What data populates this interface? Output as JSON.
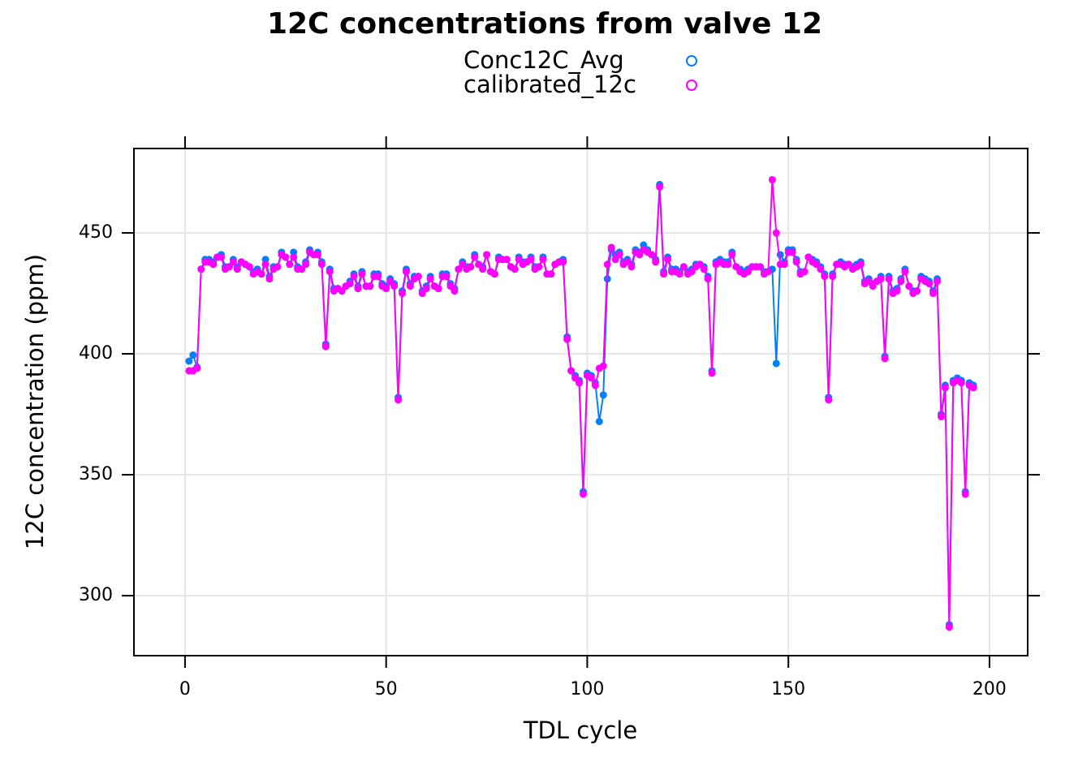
{
  "chart_data": {
    "type": "line",
    "title": "12C concentrations from valve 12",
    "x_label": "TDL cycle",
    "y_label": "12C concentration (ppm)",
    "xlim": [
      -12.7,
      209.5
    ],
    "xticks": [
      0,
      50,
      100,
      150,
      200
    ],
    "ylim": [
      275.2,
      484.9
    ],
    "yticks": [
      300,
      350,
      400,
      450
    ],
    "grid": true,
    "legend": "top",
    "x": [
      1,
      2,
      3,
      4,
      5,
      6,
      7,
      8,
      9,
      10,
      11,
      12,
      13,
      14,
      15,
      16,
      17,
      18,
      19,
      20,
      21,
      22,
      23,
      24,
      25,
      26,
      27,
      28,
      29,
      30,
      31,
      32,
      33,
      34,
      35,
      36,
      37,
      38,
      39,
      40,
      41,
      42,
      43,
      44,
      45,
      46,
      47,
      48,
      49,
      50,
      51,
      52,
      53,
      54,
      55,
      56,
      57,
      58,
      59,
      60,
      61,
      62,
      63,
      64,
      65,
      66,
      67,
      68,
      69,
      70,
      71,
      72,
      73,
      74,
      75,
      76,
      77,
      78,
      79,
      80,
      81,
      82,
      83,
      84,
      85,
      86,
      87,
      88,
      89,
      90,
      91,
      92,
      93,
      94,
      95,
      96,
      97,
      98,
      99,
      100,
      101,
      102,
      103,
      104,
      105,
      106,
      107,
      108,
      109,
      110,
      111,
      112,
      113,
      114,
      115,
      116,
      117,
      118,
      119,
      120,
      121,
      122,
      123,
      124,
      125,
      126,
      127,
      128,
      129,
      130,
      131,
      132,
      133,
      134,
      135,
      136,
      137,
      138,
      139,
      140,
      141,
      142,
      143,
      144,
      145,
      146,
      147,
      148,
      149,
      150,
      151,
      152,
      153,
      154,
      155,
      156,
      157,
      158,
      159,
      160,
      161,
      162,
      163,
      164,
      165,
      166,
      167,
      168,
      169,
      170,
      171,
      172,
      173,
      174,
      175,
      176,
      177,
      178,
      179,
      180,
      181,
      182,
      183,
      184,
      185,
      186,
      187,
      188,
      189,
      190,
      191,
      192,
      193,
      194,
      195,
      196
    ],
    "series": [
      {
        "name": "Conc12C_Avg",
        "color": "#0080ff",
        "values": [
          397,
          399.5,
          394.5,
          435,
          439,
          439,
          438,
          440,
          441,
          436,
          436,
          439,
          436,
          438,
          437,
          436,
          434,
          435,
          433,
          439,
          432,
          436,
          436,
          442,
          440,
          437,
          442,
          436,
          435,
          438,
          443,
          441,
          442,
          438,
          404,
          435,
          427,
          427,
          426,
          428,
          430,
          433,
          428,
          434,
          428,
          428,
          433,
          433,
          429,
          428,
          431,
          429,
          382,
          426,
          435,
          429,
          432,
          432,
          426,
          428,
          432,
          428,
          427,
          433,
          433,
          429,
          427,
          435,
          438,
          436,
          436,
          441,
          437,
          436,
          441,
          434,
          433,
          440,
          439,
          439,
          436,
          435,
          440,
          438,
          438,
          440,
          436,
          436,
          440,
          433,
          433,
          437,
          438,
          439,
          407,
          393,
          391,
          389,
          343,
          392,
          391,
          388,
          372,
          383,
          431,
          443,
          441,
          442,
          438,
          439,
          437,
          443,
          442,
          445,
          443,
          441,
          439,
          470,
          434,
          440,
          435,
          435,
          434,
          436,
          434,
          435,
          437,
          437,
          436,
          432,
          393,
          438,
          439,
          438,
          438,
          442,
          436,
          435,
          434,
          435,
          436,
          436,
          436,
          434,
          434,
          435,
          396,
          441,
          438,
          443,
          443,
          439,
          434,
          434,
          440,
          439,
          438,
          436,
          433,
          382,
          433,
          437,
          438,
          437,
          437,
          436,
          437,
          438,
          430,
          431,
          429,
          430,
          432,
          399,
          432,
          426,
          427,
          431,
          435,
          428,
          426,
          426,
          432,
          431,
          430,
          426,
          431,
          375,
          387,
          288,
          389,
          390,
          389,
          343,
          388,
          387
        ]
      },
      {
        "name": "calibrated_12c",
        "color": "#ff00ff",
        "values": [
          393,
          393,
          394,
          435,
          438,
          438,
          437,
          440,
          440,
          435,
          436,
          438,
          435,
          438,
          437,
          436,
          433,
          434,
          433,
          437,
          431,
          435,
          436,
          441,
          440,
          437,
          440,
          435,
          435,
          437,
          442,
          441,
          441,
          437,
          403,
          434,
          426,
          427,
          426,
          428,
          429,
          432,
          427,
          433,
          428,
          428,
          432,
          432,
          428,
          427,
          430,
          428,
          381,
          425,
          434,
          428,
          431,
          432,
          425,
          427,
          431,
          428,
          427,
          432,
          432,
          428,
          426,
          435,
          437,
          435,
          436,
          440,
          437,
          435,
          441,
          434,
          433,
          439,
          439,
          439,
          436,
          435,
          439,
          437,
          438,
          439,
          435,
          436,
          439,
          433,
          433,
          437,
          438,
          438,
          406,
          393,
          390,
          388,
          342,
          391,
          390,
          387,
          394,
          395,
          437,
          444,
          439,
          441,
          437,
          438,
          436,
          442,
          441,
          443,
          442,
          441,
          438,
          469,
          433,
          439,
          434,
          434,
          433,
          436,
          433,
          434,
          436,
          437,
          435,
          431,
          392,
          437,
          438,
          437,
          437,
          441,
          436,
          434,
          433,
          434,
          436,
          436,
          436,
          433,
          434,
          472,
          450,
          437,
          437,
          442,
          442,
          438,
          433,
          434,
          440,
          438,
          437,
          435,
          432,
          381,
          432,
          437,
          437,
          436,
          437,
          435,
          436,
          437,
          429,
          430,
          428,
          430,
          431,
          398,
          431,
          425,
          426,
          430,
          434,
          428,
          425,
          426,
          431,
          430,
          429,
          425,
          430,
          374,
          386,
          287,
          388,
          389,
          388,
          342,
          387,
          386
        ]
      }
    ]
  }
}
